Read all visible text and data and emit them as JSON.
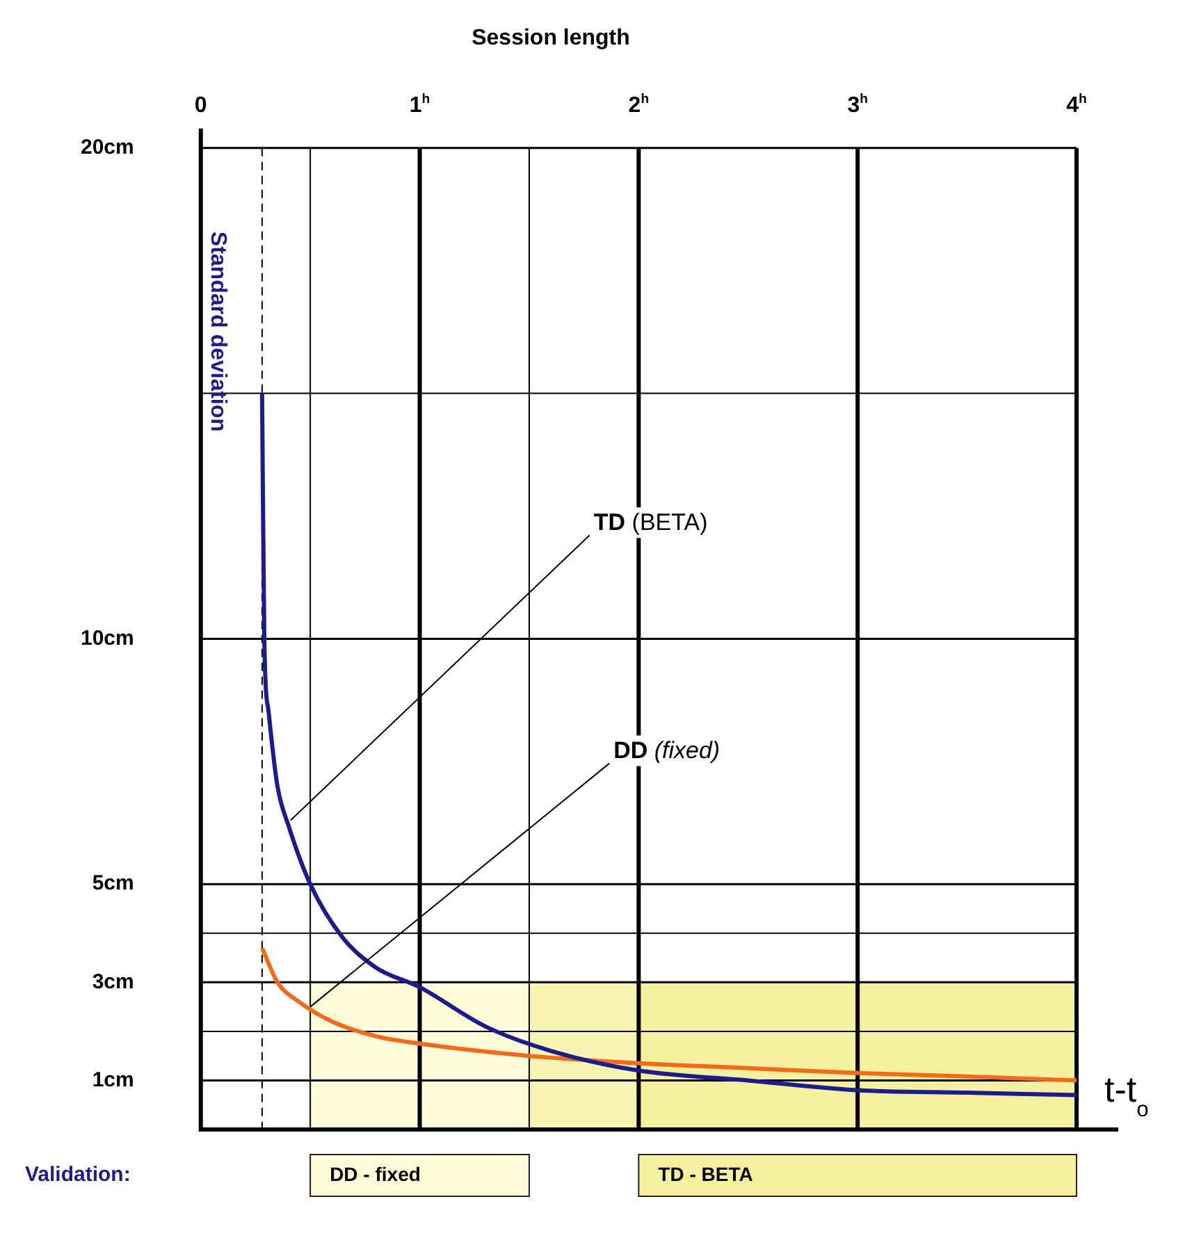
{
  "chart_data": {
    "type": "line",
    "title": "Session length",
    "xlabel": "t-t$_{o}$",
    "ylabel": "Standard deviation",
    "xlim": [
      0,
      4
    ],
    "xticks": [
      0,
      {
        "value": 0.5,
        "label": null
      },
      {
        "value": 1,
        "label": "1$^{h}$"
      },
      {
        "value": 1.5,
        "label": null
      },
      {
        "value": 2,
        "label": "2$^{h}$"
      },
      {
        "value": 3,
        "label": "3$^{h}$"
      },
      {
        "value": 4,
        "label": "4$^{h}$"
      }
    ],
    "ylim": [
      0,
      20
    ],
    "yticks": [
      {
        "value": 1,
        "label": "1cm"
      },
      {
        "value": 2,
        "label": null
      },
      {
        "value": 3,
        "label": "3cm"
      },
      {
        "value": 4,
        "label": null
      },
      {
        "value": 5,
        "label": "5cm"
      },
      {
        "value": 10,
        "label": "10cm"
      },
      {
        "value": 15,
        "label": null
      },
      {
        "value": 20,
        "label": "20cm"
      }
    ],
    "grid": true,
    "legend": false,
    "marker": "none",
    "line_style": "solid",
    "series": [
      {
        "color": "#1c1c8c",
        "x": [
          0.28,
          0.29,
          0.31,
          0.35,
          0.4,
          0.5,
          0.65,
          0.8,
          1,
          1.3,
          1.6,
          2,
          2.5,
          3,
          3.5,
          4
        ],
        "values": [
          15,
          10,
          8.5,
          7,
          6.2,
          5,
          3.9,
          3.3,
          2.9,
          2.1,
          1.6,
          1.2,
          1.0,
          0.8,
          0.75,
          0.7
        ]
      },
      {
        "color": "#f26b1d",
        "x": [
          0.28,
          0.35,
          0.45,
          0.6,
          0.8,
          1,
          1.5,
          2,
          2.5,
          3,
          3.5,
          4
        ],
        "values": [
          3.7,
          3.0,
          2.6,
          2.2,
          1.9,
          1.75,
          1.5,
          1.35,
          1.25,
          1.15,
          1.08,
          1.0
        ]
      }
    ],
    "ref_lines": [
      {
        "axis": "x",
        "value": 0.28,
        "line_style": "dashed"
      }
    ],
    "bands": [
      {
        "axis": "y",
        "from": 0,
        "to": 3,
        "color": "#f8f4b4"
      },
      {
        "axis": "x",
        "from": 0.5,
        "to": 1.5,
        "label": "DD - fixed",
        "color": "#fdfbd8"
      },
      {
        "axis": "x",
        "from": 2,
        "to": 4,
        "label": "TD - BETA",
        "color": "#f5f0a0"
      }
    ],
    "annotations": [
      {
        "text": "TD (BETA)",
        "x": 0.41,
        "y": 6.3
      },
      {
        "text": "DD (fixed)",
        "x": 0.5,
        "y": 2.5
      },
      "Validation:"
    ]
  }
}
